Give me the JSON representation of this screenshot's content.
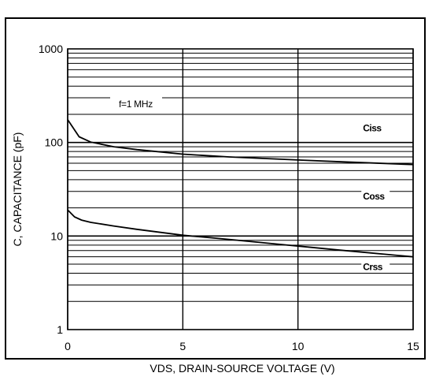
{
  "chart_data": {
    "type": "line",
    "xlabel": "VDS, DRAIN-SOURCE VOLTAGE (V)",
    "ylabel": "C, CAPACITANCE (pF)",
    "xlim": [
      0,
      15
    ],
    "ylim": [
      1,
      1000
    ],
    "y_scale": "log",
    "grid": true,
    "x_ticks": [
      "0",
      "5",
      "10",
      "15"
    ],
    "y_ticks": [
      "1",
      "10",
      "100",
      "1000"
    ],
    "annotation": "f=1 MHz",
    "series": [
      {
        "name": "Ciss",
        "x": [
          0,
          0.5,
          1,
          2,
          3,
          5,
          7,
          10,
          12,
          15
        ],
        "values": [
          175,
          115,
          101,
          90,
          84,
          75,
          70,
          65,
          62,
          58
        ]
      },
      {
        "name": "Coss",
        "x": [
          0,
          0.5,
          1,
          2,
          3,
          5,
          7,
          10,
          12,
          15
        ],
        "values": [
          175,
          115,
          101,
          90,
          84,
          75,
          70,
          65,
          62,
          58
        ]
      },
      {
        "name": "Crss",
        "x": [
          0,
          0.3,
          0.6,
          1,
          2,
          3,
          5,
          7,
          10,
          12,
          15
        ],
        "values": [
          19,
          16,
          14.8,
          14,
          12.8,
          11.8,
          10.2,
          9.2,
          7.8,
          7,
          6
        ]
      }
    ],
    "series_label_positions": [
      {
        "name": "Ciss",
        "x": 13.3,
        "y": 140
      },
      {
        "name": "Coss",
        "x": 13.3,
        "y": 26
      },
      {
        "name": "Crss",
        "x": 13.3,
        "y": 4.6
      }
    ]
  }
}
